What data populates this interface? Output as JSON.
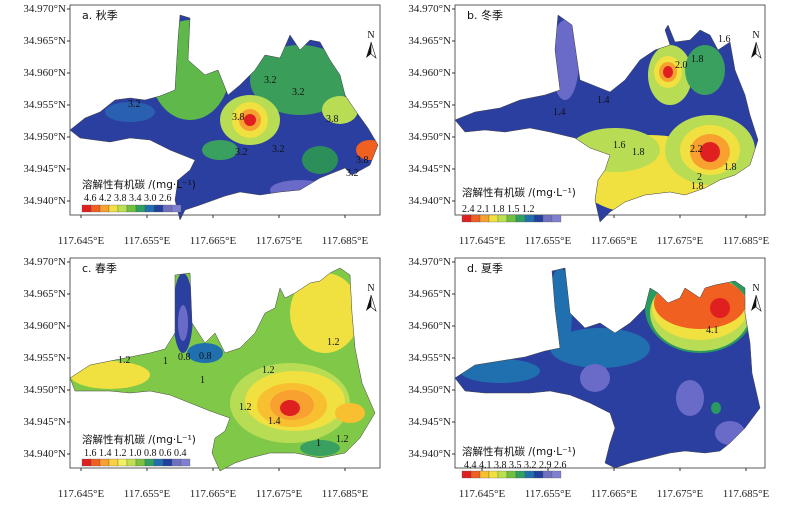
{
  "axis": {
    "y_ticks": [
      "34.970°N",
      "34.965°N",
      "34.960°N",
      "34.955°N",
      "34.950°N",
      "34.945°N",
      "34.940°N"
    ],
    "x_ticks": [
      "117.645°E",
      "117.655°E",
      "117.665°E",
      "117.675°E",
      "117.685°E"
    ]
  },
  "north_label": "N",
  "legend_title": "溶解性有机碳 /(mg·L⁻¹)",
  "panels": [
    {
      "id": "a",
      "title": "a. 秋季",
      "legend_ticks": [
        "4.6",
        "4.2",
        "3.8",
        "3.4",
        "3.0",
        "2.6"
      ],
      "legend_tick_label": "4.6  4.2  3.8  3.4  3.0  2.6",
      "legend_colors": [
        "#e02020",
        "#f06020",
        "#f8a030",
        "#f0e040",
        "#b8e050",
        "#70c040",
        "#30a060",
        "#2070b0",
        "#2040a0",
        "#7070c0",
        "#8080d0"
      ],
      "contour_labels": [
        {
          "text": "3.2"
        },
        {
          "text": "3.2"
        },
        {
          "text": "3.2"
        },
        {
          "text": "3.8"
        },
        {
          "text": "3.8"
        },
        {
          "text": "3.2"
        },
        {
          "text": "3.2"
        },
        {
          "text": "3.8"
        },
        {
          "text": "3.2"
        }
      ]
    },
    {
      "id": "b",
      "title": "b. 冬季",
      "legend_ticks": [
        "2.4",
        "2.1",
        "1.8",
        "1.5",
        "1.2"
      ],
      "legend_tick_label": "2.4   2.1   1.8   1.5   1.2",
      "legend_colors": [
        "#e02020",
        "#f06020",
        "#f8a030",
        "#f0e040",
        "#b8e050",
        "#70c040",
        "#30a060",
        "#2070b0",
        "#2040a0",
        "#7070c0",
        "#8080d0"
      ],
      "contour_labels": [
        {
          "text": "2.0"
        },
        {
          "text": "1.8"
        },
        {
          "text": "1.6"
        },
        {
          "text": "1.4"
        },
        {
          "text": "1.4"
        },
        {
          "text": "1.6"
        },
        {
          "text": "1.8"
        },
        {
          "text": "2.2"
        },
        {
          "text": "1.8"
        },
        {
          "text": "2"
        },
        {
          "text": "1.8"
        }
      ]
    },
    {
      "id": "c",
      "title": "c. 春季",
      "legend_ticks": [
        "1.6",
        "1.4",
        "1.2",
        "1.0",
        "0.8",
        "0.6",
        "0.4"
      ],
      "legend_tick_label": "1.6 1.4 1.2 1.0 0.8 0.6 0.4",
      "legend_colors": [
        "#e02020",
        "#f06020",
        "#f8a030",
        "#f8d040",
        "#f0f060",
        "#c0e050",
        "#80c040",
        "#30a060",
        "#2070b0",
        "#2040a0",
        "#7070c0",
        "#8080d0"
      ],
      "contour_labels": [
        {
          "text": "1.2"
        },
        {
          "text": "1"
        },
        {
          "text": "0.8"
        },
        {
          "text": "0.8"
        },
        {
          "text": "1"
        },
        {
          "text": "1.2"
        },
        {
          "text": "1.2"
        },
        {
          "text": "1.2"
        },
        {
          "text": "1.4"
        },
        {
          "text": "1"
        },
        {
          "text": "1.2"
        }
      ]
    },
    {
      "id": "d",
      "title": "d. 夏季",
      "legend_ticks": [
        "4.4",
        "4.1",
        "3.8",
        "3.5",
        "3.2",
        "2.9",
        "2.6"
      ],
      "legend_tick_label": "4.4 4.1 3.8 3.5 3.2 2.9 2.6",
      "legend_colors": [
        "#e02020",
        "#f06020",
        "#f8c030",
        "#f0e040",
        "#b8e050",
        "#70c040",
        "#30a060",
        "#2070b0",
        "#2040a0",
        "#7070c0",
        "#8080d0"
      ],
      "contour_labels": [
        {
          "text": "4.1"
        }
      ]
    }
  ]
}
